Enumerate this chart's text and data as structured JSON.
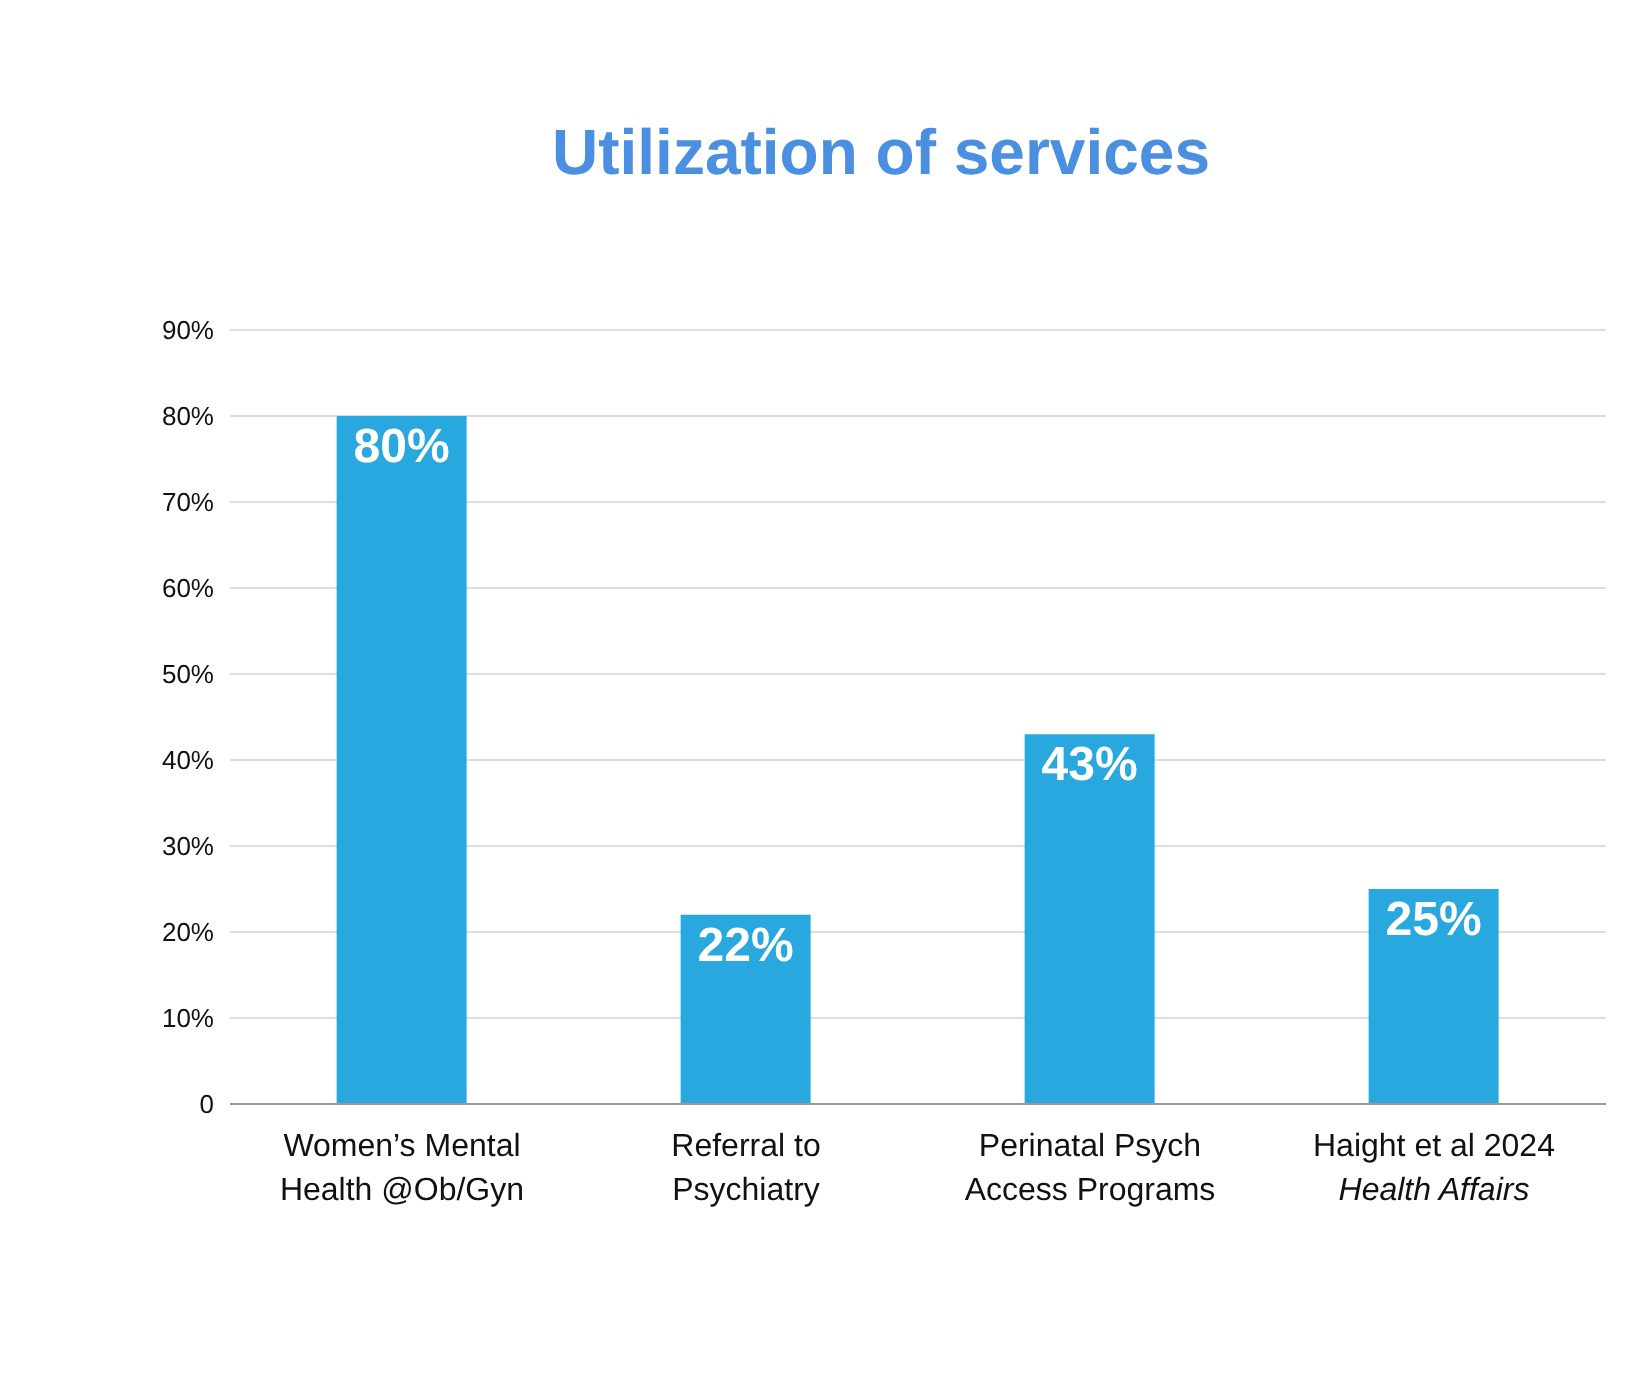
{
  "chart_data": {
    "type": "bar",
    "title": "Utilization of services",
    "categories": [
      "Women’s Mental\nHealth @Ob/Gyn",
      "Referral to\nPsychiatry",
      "Perinatal Psych\nAccess Programs",
      "Haight et al 2024\nHealth Affairs"
    ],
    "values": [
      80,
      22,
      43,
      25
    ],
    "color": "#29a8e0",
    "value_labels": [
      "80%",
      "22%",
      "43%",
      "25%"
    ],
    "ylim": [
      0,
      90
    ],
    "yticks": [
      0,
      {
        "value": 10,
        "label": "10%"
      },
      {
        "value": 20,
        "label": "20%"
      },
      {
        "value": 30,
        "label": "30%"
      },
      {
        "value": 40,
        "label": "40%"
      },
      {
        "value": 50,
        "label": "50%"
      },
      {
        "value": 60,
        "label": "60%"
      },
      {
        "value": 70,
        "label": "70%"
      },
      {
        "value": 80,
        "label": "80%"
      },
      {
        "value": 90,
        "label": "90%"
      }
    ],
    "grid": "y",
    "legend": false
  }
}
